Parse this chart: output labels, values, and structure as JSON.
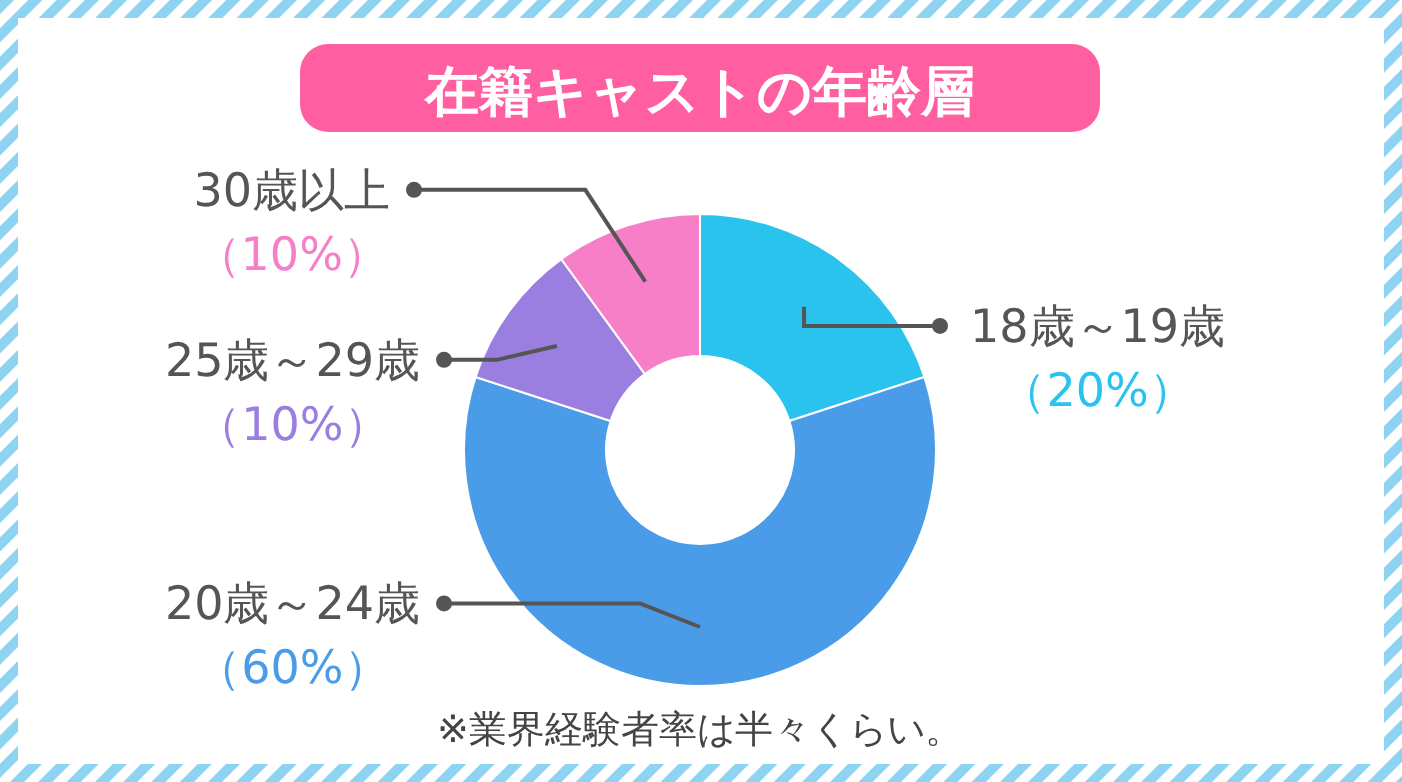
{
  "chart_data": {
    "type": "donut",
    "title": "在籍キャストの年齢層",
    "categories": [
      "18歳～19歳",
      "20歳～24歳",
      "25歳～29歳",
      "30歳以上"
    ],
    "values": [
      20,
      60,
      10,
      10
    ],
    "colors": [
      "#29c3ee",
      "#4a9ce8",
      "#9b7fe0",
      "#f77fc8"
    ],
    "value_labels": [
      "（20%）",
      "（60%）",
      "（10%）",
      "（10%）"
    ],
    "annotations": [
      "※業界経験者率は半々くらい。"
    ]
  }
}
